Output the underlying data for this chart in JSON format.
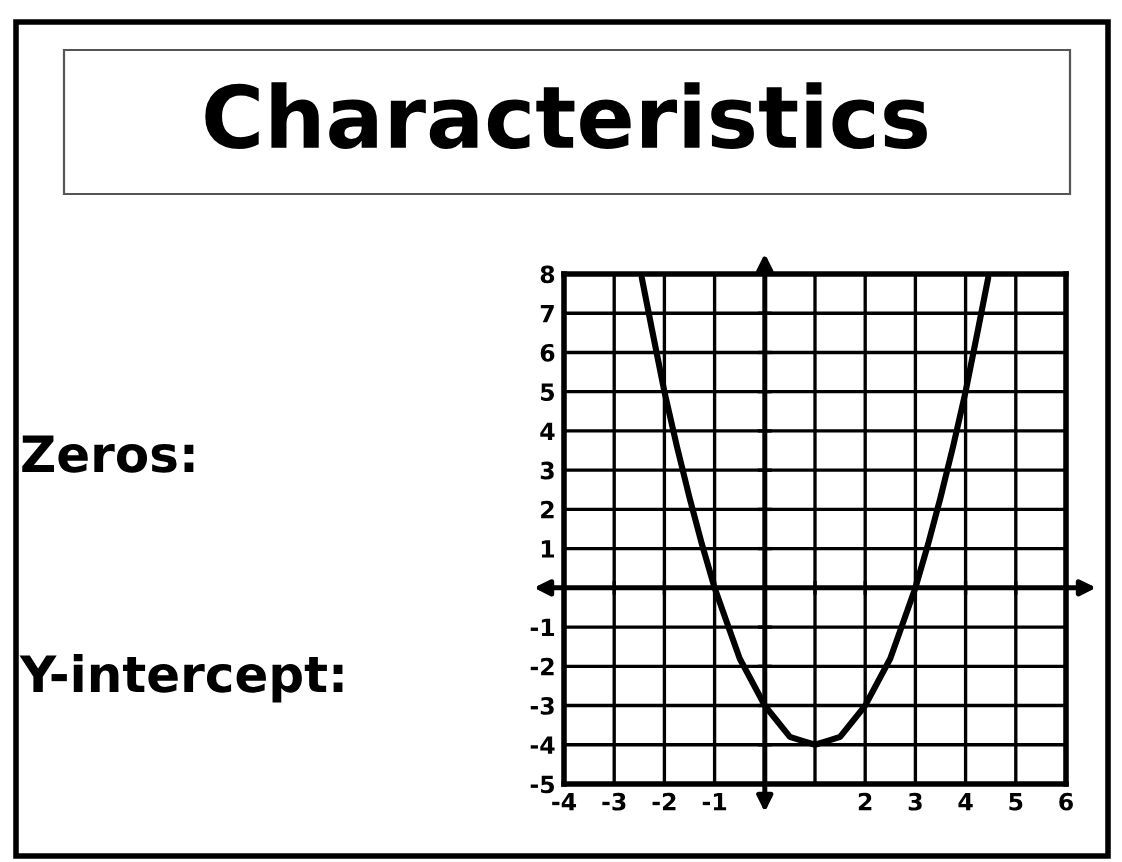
{
  "chart_data": {
    "type": "line",
    "title": "Characteristics",
    "annotations": [
      "Zeros:",
      "Y-intercept:"
    ],
    "series": [
      {
        "color": "#000000",
        "x": [
          -2.45,
          -2.25,
          -2,
          -1.75,
          -1.5,
          -1.25,
          -1,
          -0.75,
          -0.5,
          -0.25,
          0,
          0.25,
          0.5,
          0.75,
          1,
          1.25,
          1.5,
          1.75,
          2,
          2.25,
          2.5,
          2.75,
          3,
          3.25,
          3.5,
          3.75,
          4,
          4.25,
          4.45
        ],
        "values": [
          7.9,
          6.6,
          5,
          3.6,
          2.3,
          1.1,
          0,
          -0.9,
          -1.8,
          -2.4,
          -3,
          -3.4,
          -3.8,
          -3.9,
          -4,
          -3.9,
          -3.8,
          -3.4,
          -3,
          -2.4,
          -1.8,
          -0.9,
          0,
          1.1,
          2.3,
          3.6,
          5,
          6.6,
          7.9
        ]
      }
    ],
    "xlim": [
      -4,
      6
    ],
    "ylim": [
      -5,
      8
    ],
    "xticks": [
      -4,
      -3,
      -2,
      -1,
      {
        "value": 0,
        "label": null
      },
      {
        "value": 1,
        "label": null
      },
      2,
      3,
      4,
      5,
      6
    ],
    "yticks": [
      -5,
      -4,
      -3,
      -2,
      -1,
      {
        "value": 0,
        "label": null
      },
      1,
      2,
      3,
      4,
      5,
      6,
      7,
      8
    ],
    "grid": true
  }
}
